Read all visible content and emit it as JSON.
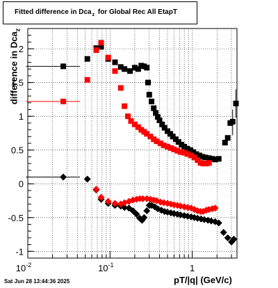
{
  "title": {
    "main": "Fitted difference in Dca",
    "sub": "z",
    "rest": "for Global Rec All EtapT"
  },
  "axes": {
    "ylabel_main": "difference in Dca",
    "ylabel_sub": "z",
    "xlabel": "pT/|q| (GeV/c)"
  },
  "datestamp": "Sat Jun 28 13:44:36 2025",
  "chart_data": {
    "type": "scatter",
    "title": "Fitted difference in Dca_z for Global Rec All EtapT",
    "xlabel": "pT/|q| (GeV/c)",
    "ylabel": "difference in Dca_z",
    "xscale": "log",
    "xlim": [
      0.01,
      3.5
    ],
    "ylim": [
      -1.1,
      2.3
    ],
    "grid": true,
    "x_tick_labels": [
      {
        "v": 0.01,
        "text": "10",
        "sup": "-2"
      },
      {
        "v": 0.1,
        "text": "10",
        "sup": "-1"
      },
      {
        "v": 1,
        "text": "1",
        "sup": ""
      }
    ],
    "y_ticks": [
      -1,
      -0.5,
      0,
      0.5,
      1,
      1.5,
      2
    ],
    "series": [
      {
        "marker": "square",
        "color": "#000000",
        "points": [
          [
            0.027,
            1.74
          ],
          [
            0.053,
            1.85
          ],
          [
            0.068,
            2.01
          ],
          [
            0.078,
            2.03
          ],
          [
            0.095,
            1.85
          ],
          [
            0.115,
            1.8
          ],
          [
            0.135,
            1.73
          ],
          [
            0.15,
            1.7
          ],
          [
            0.175,
            1.67
          ],
          [
            0.2,
            1.72
          ],
          [
            0.22,
            1.7
          ],
          [
            0.24,
            1.75
          ],
          [
            0.26,
            1.74
          ],
          [
            0.28,
            1.72
          ],
          [
            0.29,
            1.5
          ],
          [
            0.3,
            1.32
          ],
          [
            0.32,
            1.22
          ],
          [
            0.34,
            1.12
          ],
          [
            0.36,
            1.05
          ],
          [
            0.38,
            0.99
          ],
          [
            0.4,
            0.94
          ],
          [
            0.43,
            0.88
          ],
          [
            0.46,
            0.83
          ],
          [
            0.5,
            0.78
          ],
          [
            0.54,
            0.74
          ],
          [
            0.58,
            0.7
          ],
          [
            0.63,
            0.66
          ],
          [
            0.68,
            0.62
          ],
          [
            0.74,
            0.58
          ],
          [
            0.8,
            0.55
          ],
          [
            0.87,
            0.52
          ],
          [
            0.95,
            0.5
          ],
          [
            1.03,
            0.47
          ],
          [
            1.12,
            0.44
          ],
          [
            1.22,
            0.42
          ],
          [
            1.33,
            0.4
          ],
          [
            1.45,
            0.39
          ],
          [
            1.6,
            0.38
          ],
          [
            1.75,
            0.37
          ],
          [
            1.9,
            0.36
          ],
          [
            2.1,
            0.37
          ],
          [
            2.5,
            0.61
          ],
          [
            2.7,
            0.68
          ],
          [
            2.9,
            0.9
          ],
          [
            3.1,
            0.92
          ],
          [
            3.4,
            1.19
          ]
        ],
        "xerr": [
          [
            0.027,
            0.0095,
            0.043
          ]
        ],
        "yerr": [
          [
            3.1,
            0.72,
            1.1
          ],
          [
            3.4,
            0.98,
            1.4
          ]
        ]
      },
      {
        "marker": "square",
        "color": "#ff0000",
        "points": [
          [
            0.027,
            1.22
          ],
          [
            0.053,
            1.54
          ],
          [
            0.068,
            1.98
          ],
          [
            0.078,
            2.09
          ],
          [
            0.095,
            1.87
          ],
          [
            0.115,
            1.67
          ],
          [
            0.135,
            1.42
          ],
          [
            0.15,
            1.15
          ],
          [
            0.165,
            1.0
          ],
          [
            0.18,
            0.93
          ],
          [
            0.2,
            0.88
          ],
          [
            0.22,
            0.84
          ],
          [
            0.24,
            0.8
          ],
          [
            0.26,
            0.77
          ],
          [
            0.28,
            0.74
          ],
          [
            0.31,
            0.7
          ],
          [
            0.34,
            0.66
          ],
          [
            0.37,
            0.63
          ],
          [
            0.41,
            0.6
          ],
          [
            0.45,
            0.57
          ],
          [
            0.5,
            0.55
          ],
          [
            0.55,
            0.53
          ],
          [
            0.6,
            0.51
          ],
          [
            0.66,
            0.49
          ],
          [
            0.72,
            0.47
          ],
          [
            0.8,
            0.46
          ],
          [
            0.88,
            0.44
          ],
          [
            0.97,
            0.42
          ],
          [
            1.06,
            0.39
          ],
          [
            1.16,
            0.35
          ],
          [
            1.26,
            0.31
          ],
          [
            1.36,
            0.3
          ],
          [
            1.48,
            0.3
          ],
          [
            1.6,
            0.31
          ]
        ],
        "xerr": [
          [
            0.027,
            0.0095,
            0.043
          ]
        ],
        "yerr": []
      },
      {
        "marker": "diamond",
        "color": "#000000",
        "points": [
          [
            0.027,
            0.1
          ],
          [
            0.053,
            0.07
          ],
          [
            0.068,
            -0.09
          ],
          [
            0.078,
            -0.23
          ],
          [
            0.095,
            -0.29
          ],
          [
            0.115,
            -0.32
          ],
          [
            0.135,
            -0.33
          ],
          [
            0.15,
            -0.35
          ],
          [
            0.17,
            -0.36
          ],
          [
            0.19,
            -0.4
          ],
          [
            0.21,
            -0.45
          ],
          [
            0.23,
            -0.51
          ],
          [
            0.245,
            -0.54
          ],
          [
            0.26,
            -0.5
          ],
          [
            0.28,
            -0.4
          ],
          [
            0.3,
            -0.32
          ],
          [
            0.32,
            -0.32
          ],
          [
            0.35,
            -0.34
          ],
          [
            0.38,
            -0.37
          ],
          [
            0.42,
            -0.39
          ],
          [
            0.46,
            -0.41
          ],
          [
            0.5,
            -0.42
          ],
          [
            0.55,
            -0.43
          ],
          [
            0.6,
            -0.44
          ],
          [
            0.66,
            -0.45
          ],
          [
            0.72,
            -0.46
          ],
          [
            0.8,
            -0.47
          ],
          [
            0.88,
            -0.48
          ],
          [
            0.97,
            -0.49
          ],
          [
            1.06,
            -0.5
          ],
          [
            1.16,
            -0.51
          ],
          [
            1.28,
            -0.52
          ],
          [
            1.4,
            -0.53
          ],
          [
            1.55,
            -0.54
          ],
          [
            1.7,
            -0.55
          ],
          [
            1.9,
            -0.56
          ],
          [
            2.1,
            -0.58
          ],
          [
            2.4,
            -0.72
          ],
          [
            2.7,
            -0.8
          ],
          [
            3.0,
            -0.86
          ],
          [
            3.2,
            -0.82
          ]
        ],
        "xerr": [
          [
            0.027,
            0.0095,
            0.043
          ]
        ],
        "yerr": []
      },
      {
        "marker": "diamond",
        "color": "#ff0000",
        "points": [
          [
            0.068,
            -0.08
          ],
          [
            0.078,
            -0.2
          ],
          [
            0.095,
            -0.26
          ],
          [
            0.115,
            -0.29
          ],
          [
            0.135,
            -0.3
          ],
          [
            0.15,
            -0.28
          ],
          [
            0.17,
            -0.26
          ],
          [
            0.19,
            -0.24
          ],
          [
            0.21,
            -0.23
          ],
          [
            0.23,
            -0.22
          ],
          [
            0.25,
            -0.22
          ],
          [
            0.28,
            -0.22
          ],
          [
            0.31,
            -0.23
          ],
          [
            0.34,
            -0.24
          ],
          [
            0.37,
            -0.25
          ],
          [
            0.41,
            -0.27
          ],
          [
            0.45,
            -0.28
          ],
          [
            0.5,
            -0.29
          ],
          [
            0.55,
            -0.3
          ],
          [
            0.6,
            -0.31
          ],
          [
            0.66,
            -0.32
          ],
          [
            0.72,
            -0.33
          ],
          [
            0.8,
            -0.34
          ],
          [
            0.88,
            -0.35
          ],
          [
            0.97,
            -0.36
          ],
          [
            1.06,
            -0.38
          ],
          [
            1.16,
            -0.4
          ],
          [
            1.26,
            -0.41
          ],
          [
            1.36,
            -0.41
          ],
          [
            1.48,
            -0.39
          ],
          [
            1.6,
            -0.38
          ],
          [
            1.75,
            -0.37
          ],
          [
            1.9,
            -0.36
          ]
        ],
        "xerr": [],
        "yerr": []
      }
    ]
  }
}
